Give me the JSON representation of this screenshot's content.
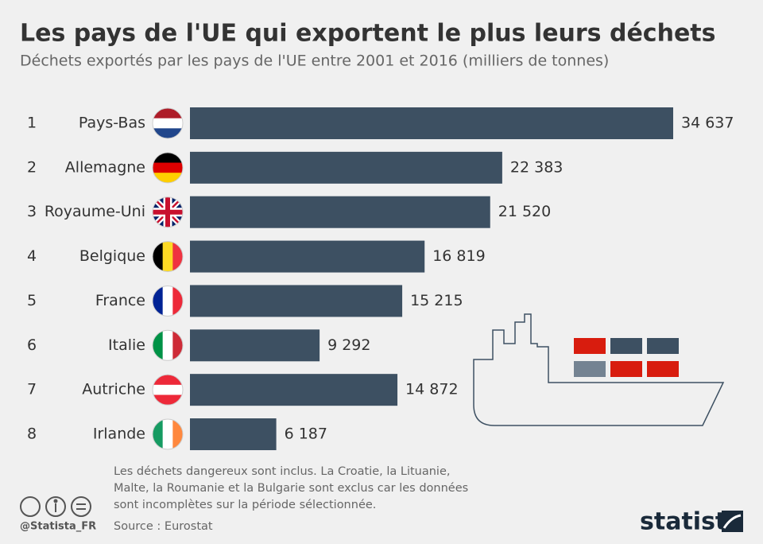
{
  "chart_data": {
    "type": "hbar",
    "title": "Les pays de l'UE qui exportent le plus leurs déchets",
    "subtitle": "Déchets exportés par les pays de l'UE entre 2001 et 2016 (milliers de tonnes)",
    "ranks": [
      "1",
      "2",
      "3",
      "4",
      "5",
      "6",
      "7",
      "8"
    ],
    "categories": [
      "Pays-Bas",
      "Allemagne",
      "Royaume-Uni",
      "Belgique",
      "France",
      "Italie",
      "Autriche",
      "Irlande"
    ],
    "values": [
      34637,
      22383,
      21520,
      16819,
      15215,
      9292,
      14872,
      6187
    ],
    "value_labels": [
      "34 637",
      "22 383",
      "21 520",
      "16 819",
      "15 215",
      "9 292",
      "14 872",
      "6 187"
    ],
    "color": "#3d5062",
    "note": [
      "Les déchets dangereux sont inclus. La Croatie, la Lituanie,",
      "Malte, la Roumanie et la Bulgarie sont exclus car les données",
      "sont incomplètes sur la période sélectionnée."
    ],
    "source": "Source : Eurostat",
    "handle": "@Statista_FR",
    "brand": "statista"
  }
}
